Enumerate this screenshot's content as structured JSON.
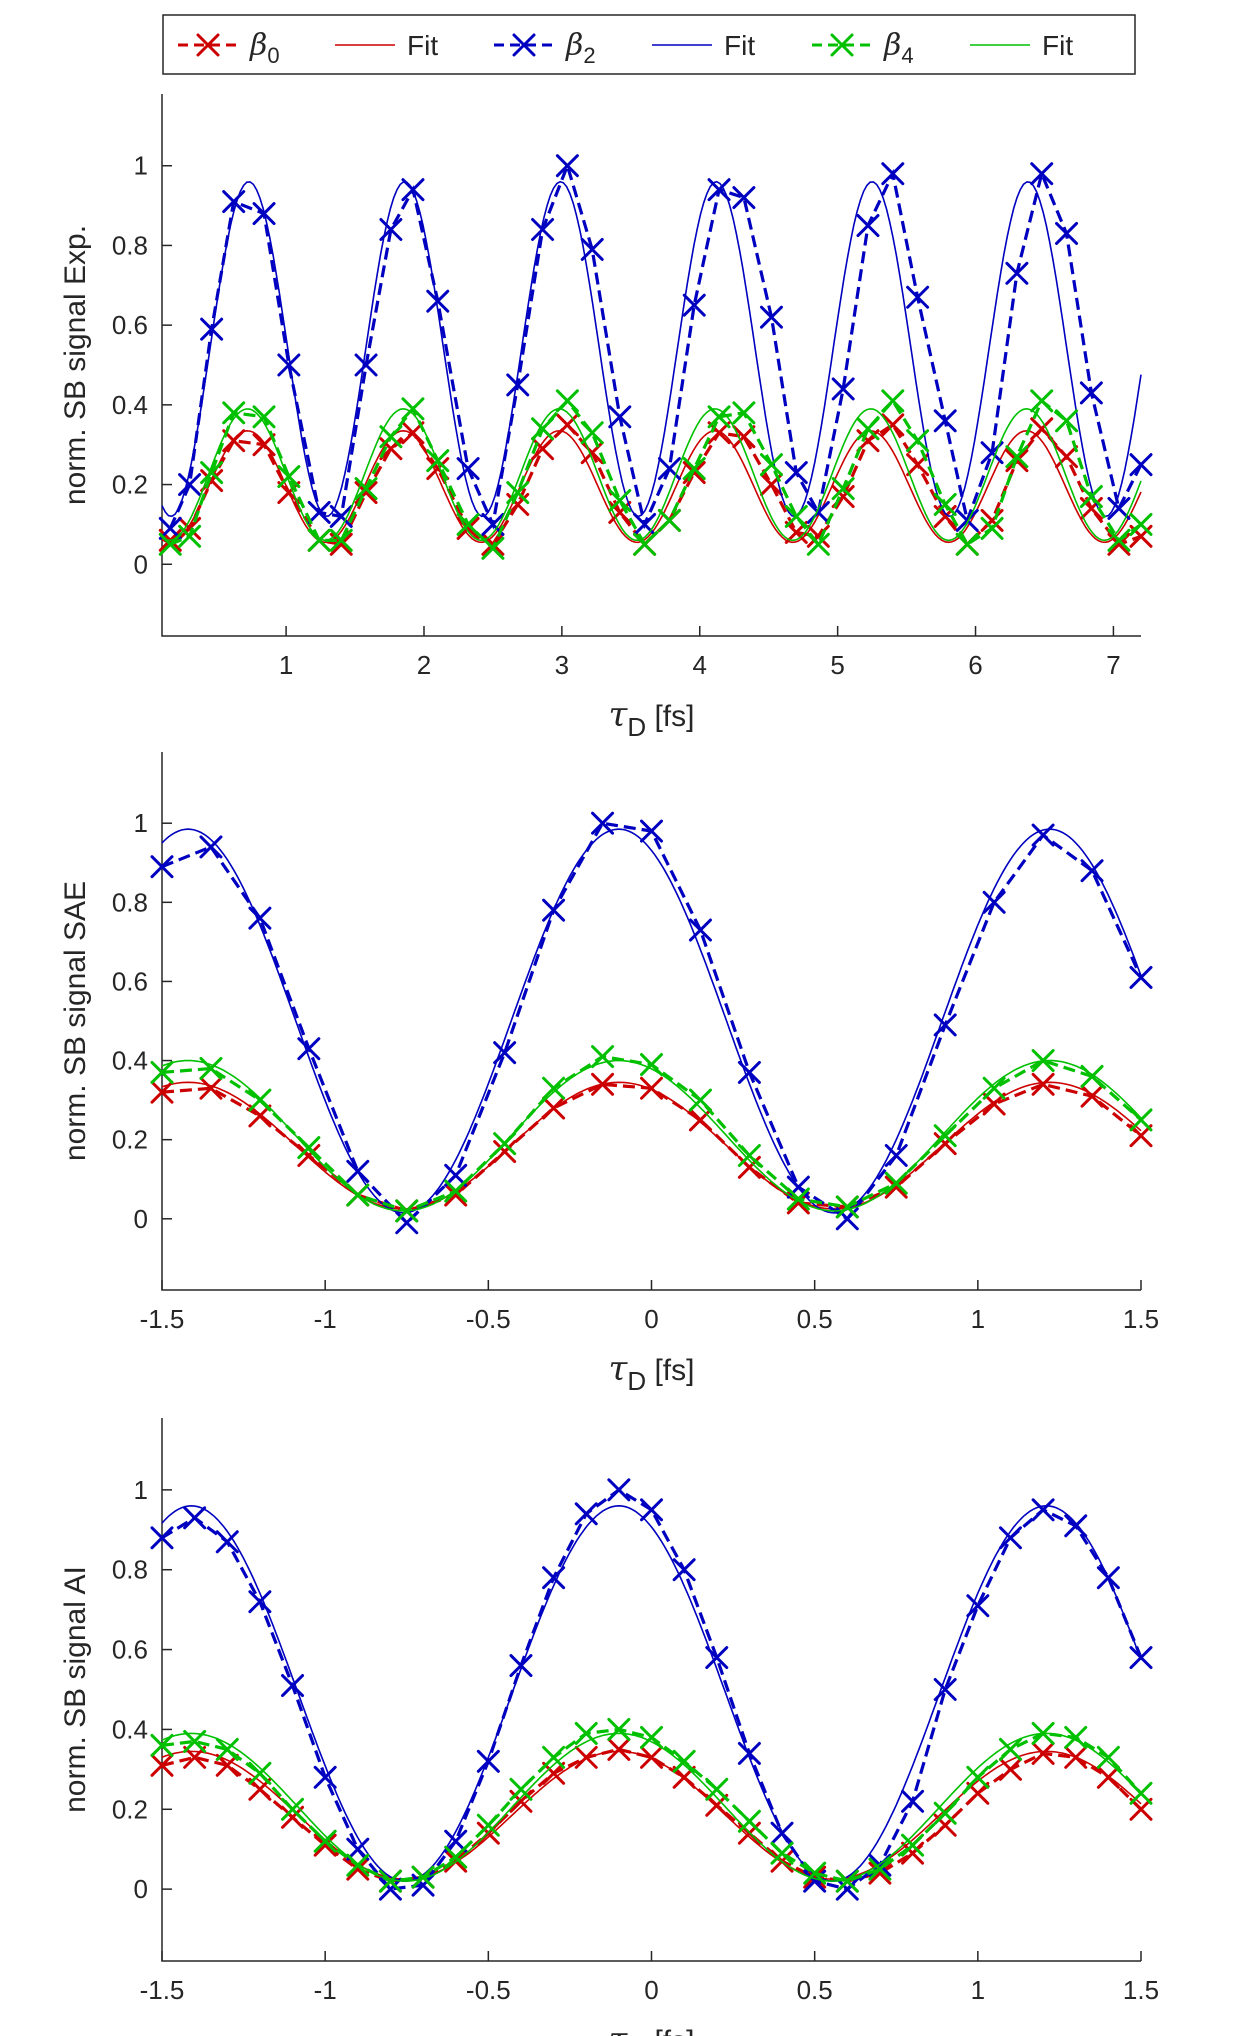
{
  "legend": {
    "entries": [
      {
        "label": "β",
        "sub": "0",
        "kind": "data",
        "color": "#cc0000"
      },
      {
        "label": "Fit",
        "sub": "",
        "kind": "fit",
        "color": "#cc0000"
      },
      {
        "label": "β",
        "sub": "2",
        "kind": "data",
        "color": "#0000c0"
      },
      {
        "label": "Fit",
        "sub": "",
        "kind": "fit",
        "color": "#0000c0"
      },
      {
        "label": "β",
        "sub": "4",
        "kind": "data",
        "color": "#00c000"
      },
      {
        "label": "Fit",
        "sub": "",
        "kind": "fit",
        "color": "#00c000"
      }
    ]
  },
  "colors": {
    "beta0": "#cc0000",
    "beta2": "#0000c0",
    "beta4": "#00c000",
    "axis": "#262626"
  },
  "chart_data": [
    {
      "type": "line",
      "ylabel": "norm. SB signal Exp.",
      "xlabel_symbol": "τ",
      "xlabel_sub": "D",
      "xlabel_unit": " [fs]",
      "xlim": [
        0.1,
        7.2
      ],
      "ylim": [
        -0.18,
        1.18
      ],
      "xticks": [
        1,
        2,
        3,
        4,
        5,
        6,
        7
      ],
      "xtick_labels": [
        "1",
        "2",
        "3",
        "4",
        "5",
        "6",
        "7"
      ],
      "yticks": [
        0,
        0.2,
        0.4,
        0.6,
        0.8,
        1
      ],
      "ytick_labels": [
        "0",
        "0.2",
        "0.4",
        "0.6",
        "0.8",
        "1"
      ],
      "x": [
        0.16,
        0.3,
        0.46,
        0.62,
        0.84,
        1.02,
        1.24,
        1.4,
        1.58,
        1.76,
        1.92,
        2.1,
        2.32,
        2.5,
        2.68,
        2.86,
        3.04,
        3.22,
        3.42,
        3.6,
        3.78,
        3.96,
        4.14,
        4.32,
        4.52,
        4.7,
        4.86,
        5.04,
        5.22,
        5.4,
        5.58,
        5.78,
        5.94,
        6.12,
        6.3,
        6.48,
        6.66,
        6.84,
        7.04,
        7.2
      ],
      "fit_period": 1.13,
      "series": [
        {
          "name": "β0",
          "color": "#cc0000",
          "values": [
            0.06,
            0.09,
            0.21,
            0.31,
            0.3,
            0.18,
            0.06,
            0.05,
            0.18,
            0.29,
            0.33,
            0.24,
            0.09,
            0.05,
            0.15,
            0.29,
            0.35,
            0.28,
            0.13,
            0.05,
            0.11,
            0.23,
            0.33,
            0.32,
            0.2,
            0.08,
            0.07,
            0.17,
            0.31,
            0.35,
            0.25,
            0.12,
            0.05,
            0.11,
            0.26,
            0.34,
            0.27,
            0.14,
            0.05,
            0.07
          ],
          "fit": {
            "mean": 0.195,
            "amp": 0.14,
            "peak": 0.72
          }
        },
        {
          "name": "β2",
          "color": "#0000c0",
          "values": [
            0.09,
            0.2,
            0.59,
            0.91,
            0.88,
            0.5,
            0.13,
            0.12,
            0.5,
            0.84,
            0.94,
            0.66,
            0.24,
            0.1,
            0.45,
            0.84,
            1.0,
            0.79,
            0.37,
            0.1,
            0.24,
            0.65,
            0.94,
            0.92,
            0.62,
            0.23,
            0.13,
            0.44,
            0.85,
            0.98,
            0.67,
            0.36,
            0.11,
            0.28,
            0.73,
            0.98,
            0.83,
            0.43,
            0.14,
            0.25
          ],
          "fit": {
            "mean": 0.54,
            "amp": 0.42,
            "peak": 0.73
          }
        },
        {
          "name": "β4",
          "color": "#00c000",
          "values": [
            0.05,
            0.07,
            0.23,
            0.38,
            0.37,
            0.22,
            0.06,
            0.06,
            0.19,
            0.32,
            0.39,
            0.26,
            0.1,
            0.04,
            0.18,
            0.34,
            0.41,
            0.33,
            0.16,
            0.05,
            0.11,
            0.24,
            0.37,
            0.38,
            0.25,
            0.12,
            0.05,
            0.19,
            0.34,
            0.41,
            0.31,
            0.15,
            0.05,
            0.09,
            0.27,
            0.41,
            0.36,
            0.17,
            0.06,
            0.1
          ],
          "fit": {
            "mean": 0.225,
            "amp": 0.165,
            "peak": 0.72
          }
        }
      ]
    },
    {
      "type": "line",
      "ylabel": "norm. SB signal SAE",
      "xlabel_symbol": "τ",
      "xlabel_sub": "D",
      "xlabel_unit": " [fs]",
      "xlim": [
        -1.5,
        1.5
      ],
      "ylim": [
        -0.18,
        1.18
      ],
      "xticks": [
        -1.5,
        -1,
        -0.5,
        0,
        0.5,
        1,
        1.5
      ],
      "xtick_labels": [
        "-1.5",
        "-1",
        "-0.5",
        "0",
        "0.5",
        "1",
        "1.5"
      ],
      "yticks": [
        0,
        0.2,
        0.4,
        0.6,
        0.8,
        1
      ],
      "ytick_labels": [
        "0",
        "0.2",
        "0.4",
        "0.6",
        "0.8",
        "1"
      ],
      "x": [
        -1.5,
        -1.35,
        -1.2,
        -1.05,
        -0.9,
        -0.75,
        -0.6,
        -0.45,
        -0.3,
        -0.15,
        0,
        0.15,
        0.3,
        0.45,
        0.6,
        0.75,
        0.9,
        1.05,
        1.2,
        1.35,
        1.5
      ],
      "fit_period": 1.32,
      "series": [
        {
          "name": "β0",
          "color": "#cc0000",
          "values": [
            0.32,
            0.33,
            0.26,
            0.16,
            0.06,
            0.02,
            0.06,
            0.17,
            0.28,
            0.34,
            0.33,
            0.25,
            0.13,
            0.04,
            0.03,
            0.08,
            0.19,
            0.29,
            0.34,
            0.31,
            0.21
          ],
          "fit": {
            "mean": 0.185,
            "amp": 0.16,
            "peak": -0.1
          }
        },
        {
          "name": "β2",
          "color": "#0000c0",
          "values": [
            0.89,
            0.94,
            0.76,
            0.43,
            0.12,
            -0.01,
            0.11,
            0.42,
            0.78,
            1.0,
            0.98,
            0.73,
            0.37,
            0.08,
            0.0,
            0.16,
            0.49,
            0.8,
            0.97,
            0.88,
            0.61
          ],
          "fit": {
            "mean": 0.5,
            "amp": 0.485,
            "peak": -0.1
          }
        },
        {
          "name": "β4",
          "color": "#00c000",
          "values": [
            0.37,
            0.38,
            0.3,
            0.18,
            0.06,
            0.02,
            0.07,
            0.19,
            0.33,
            0.41,
            0.39,
            0.3,
            0.16,
            0.05,
            0.03,
            0.09,
            0.21,
            0.33,
            0.4,
            0.36,
            0.25
          ],
          "fit": {
            "mean": 0.21,
            "amp": 0.19,
            "peak": -0.1
          }
        }
      ]
    },
    {
      "type": "line",
      "ylabel": "norm. SB signal AI",
      "xlabel_symbol": "τ",
      "xlabel_sub": "D",
      "xlabel_unit": " [fs]",
      "xlim": [
        -1.5,
        1.5
      ],
      "ylim": [
        -0.18,
        1.18
      ],
      "xticks": [
        -1.5,
        -1,
        -0.5,
        0,
        0.5,
        1,
        1.5
      ],
      "xtick_labels": [
        "-1.5",
        "-1",
        "-0.5",
        "0",
        "0.5",
        "1",
        "1.5"
      ],
      "yticks": [
        0,
        0.2,
        0.4,
        0.6,
        0.8,
        1
      ],
      "ytick_labels": [
        "0",
        "0.2",
        "0.4",
        "0.6",
        "0.8",
        "1"
      ],
      "x": [
        -1.5,
        -1.4,
        -1.3,
        -1.2,
        -1.1,
        -1.0,
        -0.9,
        -0.8,
        -0.7,
        -0.6,
        -0.5,
        -0.4,
        -0.3,
        -0.2,
        -0.1,
        0,
        0.1,
        0.2,
        0.3,
        0.4,
        0.5,
        0.6,
        0.7,
        0.8,
        0.9,
        1.0,
        1.1,
        1.2,
        1.3,
        1.4,
        1.5
      ],
      "fit_period": 1.31,
      "series": [
        {
          "name": "β0",
          "color": "#cc0000",
          "values": [
            0.31,
            0.33,
            0.31,
            0.25,
            0.18,
            0.11,
            0.05,
            0.02,
            0.03,
            0.07,
            0.14,
            0.22,
            0.29,
            0.33,
            0.35,
            0.33,
            0.28,
            0.21,
            0.14,
            0.07,
            0.03,
            0.02,
            0.04,
            0.09,
            0.16,
            0.24,
            0.3,
            0.34,
            0.33,
            0.28,
            0.2
          ],
          "fit": {
            "mean": 0.185,
            "amp": 0.16,
            "peak": -0.1
          }
        },
        {
          "name": "β2",
          "color": "#0000c0",
          "values": [
            0.88,
            0.93,
            0.87,
            0.72,
            0.51,
            0.28,
            0.1,
            0.0,
            0.01,
            0.12,
            0.32,
            0.56,
            0.78,
            0.94,
            1.0,
            0.95,
            0.8,
            0.58,
            0.34,
            0.14,
            0.02,
            0.0,
            0.06,
            0.22,
            0.5,
            0.71,
            0.88,
            0.95,
            0.91,
            0.78,
            0.58
          ],
          "fit": {
            "mean": 0.49,
            "amp": 0.47,
            "peak": -0.1
          }
        },
        {
          "name": "β4",
          "color": "#00c000",
          "values": [
            0.36,
            0.37,
            0.35,
            0.29,
            0.2,
            0.12,
            0.06,
            0.02,
            0.03,
            0.08,
            0.16,
            0.25,
            0.33,
            0.39,
            0.4,
            0.38,
            0.32,
            0.25,
            0.17,
            0.09,
            0.04,
            0.02,
            0.05,
            0.11,
            0.19,
            0.28,
            0.35,
            0.39,
            0.38,
            0.33,
            0.24
          ],
          "fit": {
            "mean": 0.205,
            "amp": 0.185,
            "peak": -0.1
          }
        }
      ]
    }
  ]
}
